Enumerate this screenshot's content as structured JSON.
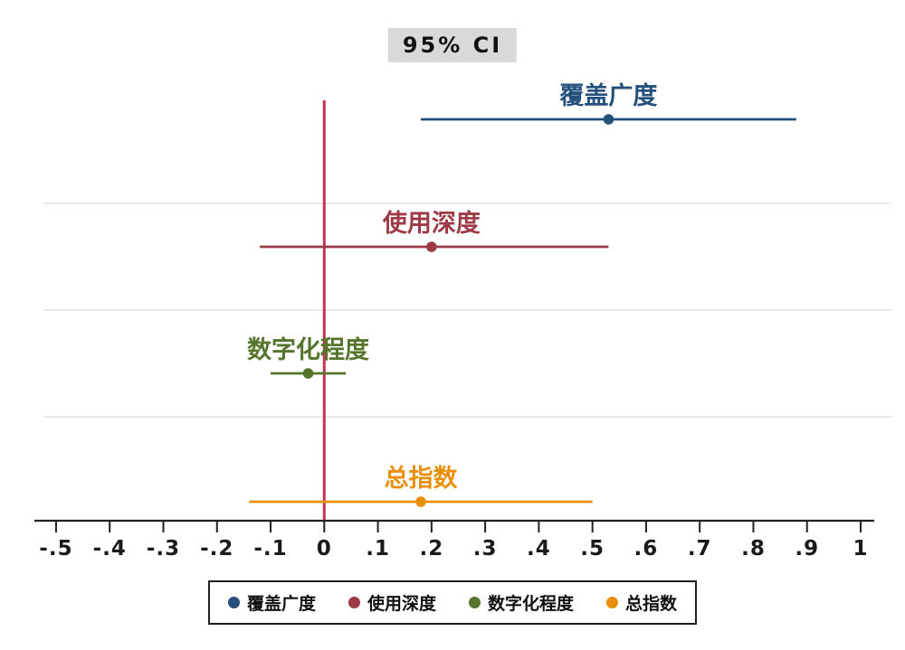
{
  "title": "95% CI",
  "background": "#ffffff",
  "chart_data": {
    "type": "scatter",
    "subtype": "coefficient-plot-with-confidence-intervals",
    "orientation": "horizontal",
    "title": "95% CI",
    "xlabel": "",
    "ylabel": "",
    "xlim": [
      -0.54,
      1.04
    ],
    "x_ticks": [
      {
        "value": -0.5,
        "label": "-.5"
      },
      {
        "value": -0.4,
        "label": "-.4"
      },
      {
        "value": -0.3,
        "label": "-.3"
      },
      {
        "value": -0.2,
        "label": "-.2"
      },
      {
        "value": -0.1,
        "label": "-.1"
      },
      {
        "value": 0,
        "label": "0"
      },
      {
        "value": 0.1,
        "label": ".1"
      },
      {
        "value": 0.2,
        "label": ".2"
      },
      {
        "value": 0.3,
        "label": ".3"
      },
      {
        "value": 0.4,
        "label": ".4"
      },
      {
        "value": 0.5,
        "label": ".5"
      },
      {
        "value": 0.6,
        "label": ".6"
      },
      {
        "value": 0.7,
        "label": ".7"
      },
      {
        "value": 0.8,
        "label": ".8"
      },
      {
        "value": 0.9,
        "label": ".9"
      },
      {
        "value": 1,
        "label": "1"
      }
    ],
    "grid": "light horizontal separator lines between category rows",
    "grid_color": "#e6ebeb",
    "axis_color": "#222222",
    "zero_line": {
      "x": 0,
      "color": "#c43352"
    },
    "series": [
      {
        "name": "覆盖广度",
        "estimate": 0.53,
        "ci_low": 0.18,
        "ci_high": 0.88,
        "color": "#24517c"
      },
      {
        "name": "使用深度",
        "estimate": 0.2,
        "ci_low": -0.12,
        "ci_high": 0.53,
        "color": "#9c3a45"
      },
      {
        "name": "数字化程度",
        "estimate": -0.03,
        "ci_low": -0.1,
        "ci_high": 0.04,
        "color": "#55752d"
      },
      {
        "name": "总指数",
        "estimate": 0.18,
        "ci_low": -0.14,
        "ci_high": 0.5,
        "color": "#e8900c"
      }
    ],
    "legend": {
      "position": "bottom-center",
      "entries": [
        "覆盖广度",
        "使用深度",
        "数字化程度",
        "总指数"
      ]
    }
  }
}
